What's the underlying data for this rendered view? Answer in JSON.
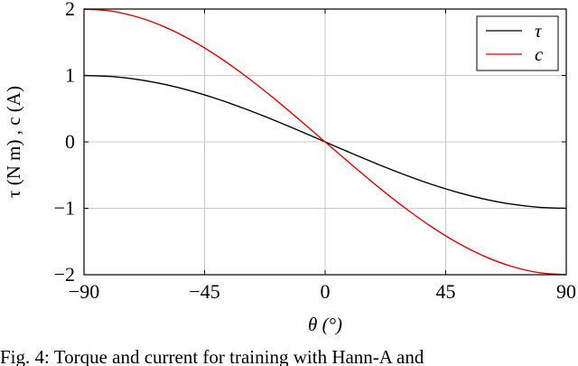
{
  "chart_data": {
    "type": "line",
    "title": "",
    "xlabel": "θ (°)",
    "ylabel": "τ (N m) , c (A)",
    "xlim": [
      -90,
      90
    ],
    "ylim": [
      -2,
      2
    ],
    "xticks": [
      -90,
      -45,
      0,
      45,
      90
    ],
    "xtick_labels": [
      "−90",
      "−45",
      "0",
      "45",
      "90"
    ],
    "yticks": [
      -2,
      -1,
      0,
      1,
      2
    ],
    "ytick_labels": [
      "−2",
      "−1",
      "0",
      "1",
      "2"
    ],
    "grid": true,
    "legend_position": "top-right",
    "x": [
      -90,
      -80,
      -70,
      -60,
      -50,
      -40,
      -30,
      -20,
      -10,
      0,
      10,
      20,
      30,
      40,
      50,
      60,
      70,
      80,
      90
    ],
    "series": [
      {
        "name": "τ",
        "color": "#000000",
        "values": [
          1.0,
          0.985,
          0.94,
          0.866,
          0.766,
          0.643,
          0.5,
          0.342,
          0.174,
          0.0,
          -0.174,
          -0.342,
          -0.5,
          -0.643,
          -0.766,
          -0.866,
          -0.94,
          -0.985,
          -1.0
        ]
      },
      {
        "name": "c",
        "color": "#e00000",
        "values": [
          2.0,
          1.97,
          1.879,
          1.732,
          1.532,
          1.286,
          1.0,
          0.684,
          0.347,
          0.0,
          -0.347,
          -0.684,
          -1.0,
          -1.286,
          -1.532,
          -1.732,
          -1.879,
          -1.97,
          -2.0
        ]
      }
    ],
    "caption": "Fig. 4: Torque and current for training with Hann-A and"
  }
}
